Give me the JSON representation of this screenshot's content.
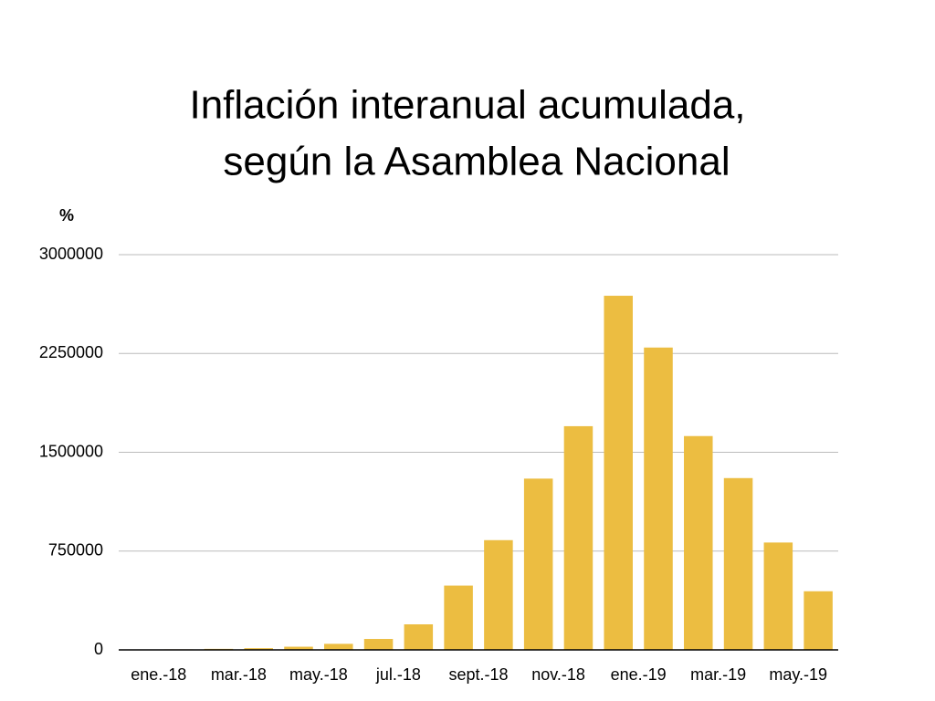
{
  "chart_data": {
    "type": "bar",
    "title": [
      "Inflación interanual acumulada,",
      "según la Asamblea Nacional"
    ],
    "y_label": "%",
    "categories": [
      "ene.-18",
      null,
      "mar.-18",
      null,
      "may.-18",
      null,
      "jul.-18",
      null,
      "sept.-18",
      null,
      "nov.-18",
      null,
      "ene.-19",
      null,
      "mar.-19",
      null,
      "may.-19",
      null
    ],
    "values": [
      2000,
      4000,
      8000,
      13000,
      24000,
      46000,
      83000,
      194000,
      488000,
      833000,
      1300000,
      1698000,
      2688000,
      2295000,
      1623000,
      1304000,
      815000,
      445000
    ],
    "color": "#ecbd41",
    "ylim": [
      0,
      3000000
    ],
    "yticks": [
      0,
      750000,
      1500000,
      2250000,
      3000000
    ],
    "grid": true
  }
}
